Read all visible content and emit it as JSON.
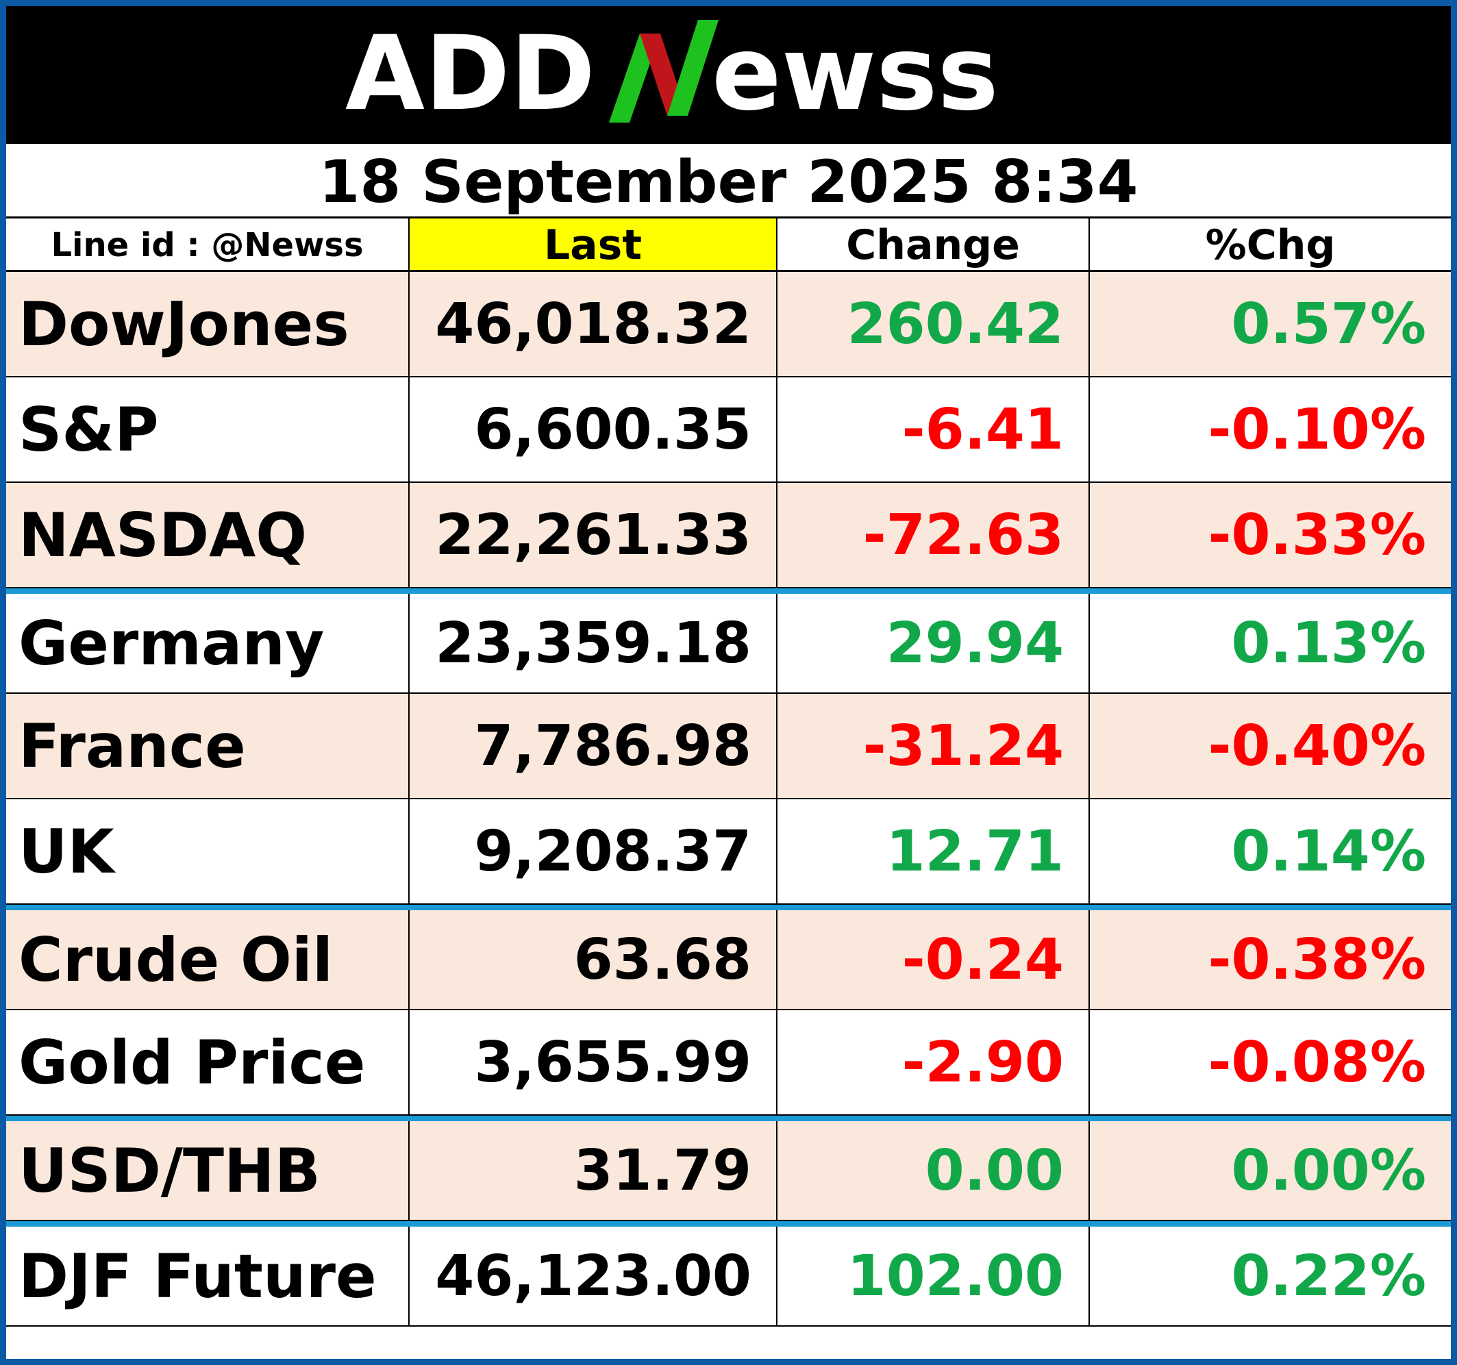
{
  "logo": {
    "text_left": "ADD",
    "text_n": "N",
    "text_right": "ewss",
    "colors": {
      "n_red": "#c0161b",
      "n_green": "#1ec21e",
      "background": "#000000"
    }
  },
  "date_time": "18 September 2025  8:34",
  "headers": {
    "line_id": "Line id : @Newss",
    "last": "Last",
    "change": "Change",
    "pct_change": "%Chg"
  },
  "rows": [
    {
      "name": "DowJones",
      "last": "46,018.32",
      "change": "260.42",
      "pct": "0.57%",
      "dir": "up"
    },
    {
      "name": "S&P",
      "last": "6,600.35",
      "change": "-6.41",
      "pct": "-0.10%",
      "dir": "down"
    },
    {
      "name": "NASDAQ",
      "last": "22,261.33",
      "change": "-72.63",
      "pct": "-0.33%",
      "dir": "down"
    },
    {
      "name": "Germany",
      "last": "23,359.18",
      "change": "29.94",
      "pct": "0.13%",
      "dir": "up"
    },
    {
      "name": "France",
      "last": "7,786.98",
      "change": "-31.24",
      "pct": "-0.40%",
      "dir": "down"
    },
    {
      "name": "UK",
      "last": "9,208.37",
      "change": "12.71",
      "pct": "0.14%",
      "dir": "up"
    },
    {
      "name": "Crude Oil",
      "last": "63.68",
      "change": "-0.24",
      "pct": "-0.38%",
      "dir": "down"
    },
    {
      "name": "Gold Price",
      "last": "3,655.99",
      "change": "-2.90",
      "pct": "-0.08%",
      "dir": "down"
    },
    {
      "name": "USD/THB",
      "last": "31.79",
      "change": "0.00",
      "pct": "0.00%",
      "dir": "up"
    },
    {
      "name": "DJF Future",
      "last": "46,123.00",
      "change": "102.00",
      "pct": "0.22%",
      "dir": "up"
    }
  ],
  "colors": {
    "up": "#12a84a",
    "down": "#ff0000",
    "shade": "#fbe8dc",
    "separator": "#1b9ad6",
    "frame": "#0b5aa6",
    "highlight": "#ffff00"
  }
}
